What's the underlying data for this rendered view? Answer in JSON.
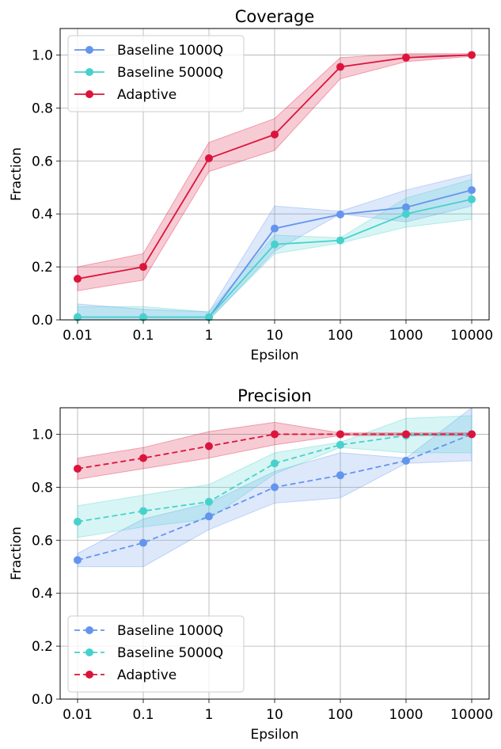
{
  "chart_data": [
    {
      "type": "line",
      "title": "Coverage",
      "xlabel": "Epsilon",
      "ylabel": "Fraction",
      "x_scale": "log",
      "categories": [
        "0.01",
        "0.1",
        "1",
        "10",
        "100",
        "1000",
        "10000"
      ],
      "ylim": [
        0.0,
        1.1
      ],
      "yticks": [
        "0.0",
        "0.2",
        "0.4",
        "0.6",
        "0.8",
        "1.0"
      ],
      "grid": true,
      "legend_position": "top-left",
      "line_style": "solid",
      "series": [
        {
          "name": "Baseline 1000Q",
          "color": "#6495ED",
          "values": [
            0.01,
            0.01,
            0.01,
            0.345,
            0.398,
            0.425,
            0.49
          ],
          "lower": [
            0.0,
            0.0,
            0.0,
            0.26,
            0.4,
            0.37,
            0.43
          ],
          "upper": [
            0.06,
            0.04,
            0.03,
            0.43,
            0.41,
            0.49,
            0.55
          ]
        },
        {
          "name": "Baseline 5000Q",
          "color": "#48D1CC",
          "values": [
            0.01,
            0.01,
            0.01,
            0.285,
            0.3,
            0.4,
            0.455
          ],
          "lower": [
            0.0,
            0.0,
            0.0,
            0.25,
            0.29,
            0.35,
            0.38
          ],
          "upper": [
            0.05,
            0.05,
            0.03,
            0.32,
            0.31,
            0.46,
            0.53
          ]
        },
        {
          "name": "Adaptive",
          "color": "#DC143C",
          "values": [
            0.155,
            0.2,
            0.61,
            0.7,
            0.955,
            0.99,
            1.0
          ],
          "lower": [
            0.11,
            0.15,
            0.56,
            0.64,
            0.91,
            0.975,
            0.995
          ],
          "upper": [
            0.2,
            0.25,
            0.67,
            0.76,
            0.99,
            1.005,
            1.005
          ]
        }
      ]
    },
    {
      "type": "line",
      "title": "Precision",
      "xlabel": "Epsilon",
      "ylabel": "Fraction",
      "x_scale": "log",
      "categories": [
        "0.01",
        "0.1",
        "1",
        "10",
        "100",
        "1000",
        "10000"
      ],
      "ylim": [
        0.0,
        1.1
      ],
      "yticks": [
        "0.0",
        "0.2",
        "0.4",
        "0.6",
        "0.8",
        "1.0"
      ],
      "grid": true,
      "legend_position": "bottom-left",
      "line_style": "dashed",
      "series": [
        {
          "name": "Baseline 1000Q",
          "color": "#6495ED",
          "values": [
            0.525,
            0.59,
            0.69,
            0.8,
            0.845,
            0.9,
            1.0
          ],
          "lower": [
            0.5,
            0.5,
            0.64,
            0.74,
            0.76,
            0.89,
            0.9
          ],
          "upper": [
            0.55,
            0.68,
            0.74,
            0.86,
            0.93,
            0.91,
            1.1
          ]
        },
        {
          "name": "Baseline 5000Q",
          "color": "#48D1CC",
          "values": [
            0.67,
            0.71,
            0.745,
            0.89,
            0.96,
            0.995,
            1.0
          ],
          "lower": [
            0.61,
            0.65,
            0.68,
            0.85,
            0.95,
            0.93,
            0.93
          ],
          "upper": [
            0.73,
            0.77,
            0.81,
            0.93,
            0.97,
            1.06,
            1.07
          ]
        },
        {
          "name": "Adaptive",
          "color": "#DC143C",
          "values": [
            0.87,
            0.91,
            0.955,
            1.0,
            1.0,
            1.0,
            1.0
          ],
          "lower": [
            0.83,
            0.87,
            0.91,
            0.96,
            0.995,
            0.995,
            0.995
          ],
          "upper": [
            0.91,
            0.95,
            1.01,
            1.045,
            1.005,
            1.005,
            1.005
          ]
        }
      ]
    }
  ]
}
